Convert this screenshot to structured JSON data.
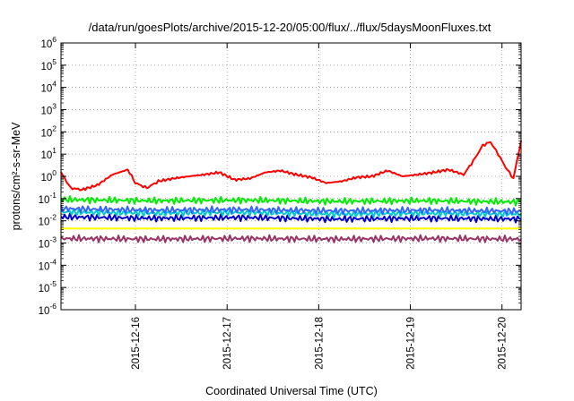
{
  "chart_data": {
    "type": "line",
    "title": "/data/run/goesPlots/archive/2015-12-20/05:00/flux/../flux/5daysMoonFluxes.txt",
    "xlabel": "Coordinated Universal Time (UTC)",
    "ylabel": "protons/cm²-s-sr-MeV",
    "scale_y": "log",
    "ylim_exp": [
      -6,
      6
    ],
    "xlim": [
      "2015-12-15T04:30",
      "2015-12-20T05:00"
    ],
    "x_ticks": [
      "2015-12-16",
      "2015-12-17",
      "2015-12-18",
      "2015-12-19",
      "2015-12-20"
    ],
    "y_ticks": [
      {
        "base": "10",
        "exp": "-6"
      },
      {
        "base": "10",
        "exp": "-5"
      },
      {
        "base": "10",
        "exp": "-4"
      },
      {
        "base": "10",
        "exp": "-3"
      },
      {
        "base": "10",
        "exp": "-2"
      },
      {
        "base": "10",
        "exp": "-1"
      },
      {
        "base": "10",
        "exp": "0"
      },
      {
        "base": "10",
        "exp": "1"
      },
      {
        "base": "10",
        "exp": "2"
      },
      {
        "base": "10",
        "exp": "3"
      },
      {
        "base": "10",
        "exp": "4"
      },
      {
        "base": "10",
        "exp": "5"
      },
      {
        "base": "10",
        "exp": "6"
      }
    ],
    "grid": true,
    "series": [
      {
        "color": "#ff0000",
        "x": [
          "2015-12-15T04:30",
          "2015-12-15T07:00",
          "2015-12-15T10:00",
          "2015-12-15T14:00",
          "2015-12-15T18:00",
          "2015-12-15T22:00",
          "2015-12-16T00:00",
          "2015-12-16T03:00",
          "2015-12-16T06:00",
          "2015-12-16T10:00",
          "2015-12-16T14:00",
          "2015-12-16T18:00",
          "2015-12-16T22:00",
          "2015-12-17T02:00",
          "2015-12-17T06:00",
          "2015-12-17T10:00",
          "2015-12-17T14:00",
          "2015-12-17T18:00",
          "2015-12-17T22:00",
          "2015-12-18T02:00",
          "2015-12-18T06:00",
          "2015-12-18T10:00",
          "2015-12-18T14:00",
          "2015-12-18T18:00",
          "2015-12-18T22:00",
          "2015-12-19T02:00",
          "2015-12-19T06:00",
          "2015-12-19T10:00",
          "2015-12-19T14:00",
          "2015-12-19T16:30",
          "2015-12-19T19:00",
          "2015-12-19T21:00",
          "2015-12-19T23:00",
          "2015-12-20T01:00",
          "2015-12-20T03:00",
          "2015-12-20T05:00"
        ],
        "values": [
          1.5,
          0.3,
          0.25,
          0.4,
          1.2,
          2.0,
          0.5,
          0.3,
          0.6,
          0.8,
          1.0,
          1.2,
          1.5,
          0.7,
          0.8,
          1.5,
          1.8,
          1.2,
          0.9,
          0.5,
          0.6,
          0.9,
          1.0,
          1.8,
          1.0,
          1.2,
          1.5,
          2.0,
          1.2,
          5.0,
          25.0,
          35.0,
          10.0,
          2.5,
          0.8,
          40.0
        ]
      },
      {
        "color": "#00ee00",
        "x": [
          "2015-12-15T04:30",
          "2015-12-16T04:30",
          "2015-12-17T04:30",
          "2015-12-18T04:30",
          "2015-12-19T04:30",
          "2015-12-20T05:00"
        ],
        "values": [
          0.09,
          0.08,
          0.085,
          0.075,
          0.08,
          0.07
        ]
      },
      {
        "color": "#3366ff",
        "x": [
          "2015-12-15T04:30",
          "2015-12-16T04:30",
          "2015-12-17T04:30",
          "2015-12-18T04:30",
          "2015-12-19T04:30",
          "2015-12-20T05:00"
        ],
        "values": [
          0.035,
          0.03,
          0.032,
          0.028,
          0.03,
          0.027
        ]
      },
      {
        "color": "#00cccc",
        "x": [
          "2015-12-15T04:30",
          "2015-12-16T04:30",
          "2015-12-17T04:30",
          "2015-12-18T04:30",
          "2015-12-19T04:30",
          "2015-12-20T05:00"
        ],
        "values": [
          0.025,
          0.022,
          0.024,
          0.02,
          0.022,
          0.02
        ]
      },
      {
        "color": "#0000cc",
        "x": [
          "2015-12-15T04:30",
          "2015-12-16T04:30",
          "2015-12-17T04:30",
          "2015-12-18T04:30",
          "2015-12-19T04:30",
          "2015-12-20T05:00"
        ],
        "values": [
          0.015,
          0.013,
          0.014,
          0.012,
          0.013,
          0.012
        ]
      },
      {
        "color": "#ffff00",
        "x": [
          "2015-12-15T04:30",
          "2015-12-20T05:00"
        ],
        "values": [
          0.0045,
          0.0045
        ]
      },
      {
        "color": "#993366",
        "x": [
          "2015-12-15T04:30",
          "2015-12-16T04:30",
          "2015-12-17T04:30",
          "2015-12-18T04:30",
          "2015-12-19T04:30",
          "2015-12-20T05:00"
        ],
        "values": [
          0.0016,
          0.0015,
          0.0016,
          0.0015,
          0.0016,
          0.0015
        ]
      }
    ]
  }
}
